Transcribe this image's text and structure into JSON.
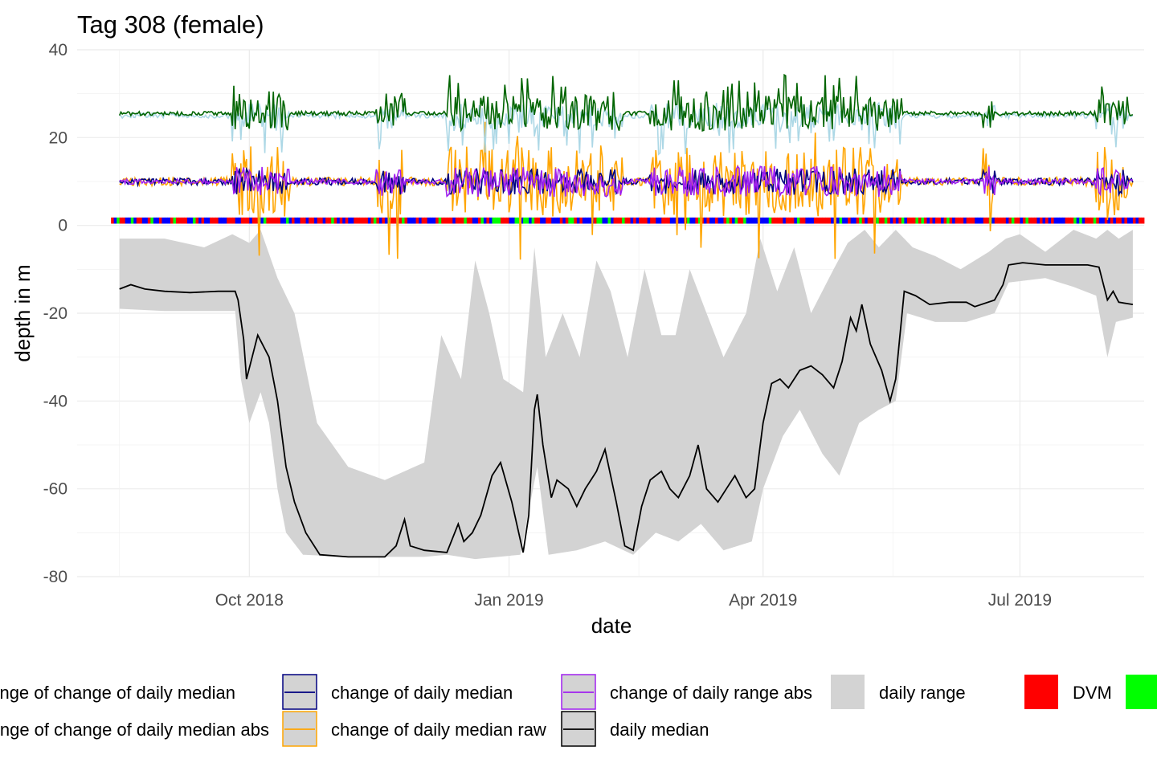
{
  "chart_data": {
    "type": "line",
    "title": "Tag 308 (female)",
    "xlabel": "date",
    "ylabel": "depth in m",
    "xlim": [
      "2018-08-01",
      "2019-08-14"
    ],
    "ylim": [
      -80,
      40
    ],
    "grid": true,
    "legend_position": "bottom",
    "x_ticks": [
      {
        "date": "2018-10-01",
        "label": "Oct 2018"
      },
      {
        "date": "2019-01-01",
        "label": "Jan 2019"
      },
      {
        "date": "2019-04-01",
        "label": "Apr 2019"
      },
      {
        "date": "2019-07-01",
        "label": "Jul 2019"
      }
    ],
    "y_ticks": [
      40,
      20,
      0,
      -20,
      -40,
      -60,
      -80
    ],
    "colors": {
      "daily_median": "#000000",
      "daily_range": "#d3d3d3",
      "change_daily_median": "#000080",
      "change_daily_median_raw": "#ffa500",
      "change_daily_range_abs": "#a020f0",
      "change_change_daily_median": "#add8e6",
      "change_change_daily_median_abs": "#006400",
      "DVM": "#ff0000",
      "second_state": "#00ff00",
      "third_state": "#0000ff"
    },
    "legend": [
      {
        "label": "change of change of daily median",
        "color": "#add8e6",
        "kind": "line"
      },
      {
        "label": "change of change of daily median abs",
        "color": "#006400",
        "kind": "line"
      },
      {
        "label": "change of daily median",
        "color": "#000080",
        "kind": "line"
      },
      {
        "label": "change of daily median raw",
        "color": "#ffa500",
        "kind": "line"
      },
      {
        "label": "change of daily range abs",
        "color": "#a020f0",
        "kind": "line"
      },
      {
        "label": "daily median",
        "color": "#000000",
        "kind": "line"
      },
      {
        "label": "daily range",
        "color": "#d3d3d3",
        "kind": "fill"
      },
      {
        "label": "DVM",
        "color": "#ff0000",
        "kind": "fill"
      },
      {
        "label": "",
        "color": "#00ff00",
        "kind": "fill"
      }
    ],
    "series": [
      {
        "name": "daily median",
        "color": "#000000",
        "points": [
          [
            "2018-08-16",
            -14.5
          ],
          [
            "2018-08-20",
            -13.5
          ],
          [
            "2018-08-25",
            -14.5
          ],
          [
            "2018-09-01",
            -15
          ],
          [
            "2018-09-10",
            -15.3
          ],
          [
            "2018-09-20",
            -15
          ],
          [
            "2018-09-26",
            -15
          ],
          [
            "2018-09-27",
            -17
          ],
          [
            "2018-09-29",
            -26
          ],
          [
            "2018-09-30",
            -35
          ],
          [
            "2018-10-02",
            -30
          ],
          [
            "2018-10-04",
            -25
          ],
          [
            "2018-10-08",
            -30
          ],
          [
            "2018-10-11",
            -40
          ],
          [
            "2018-10-14",
            -55
          ],
          [
            "2018-10-17",
            -63
          ],
          [
            "2018-10-21",
            -70
          ],
          [
            "2018-10-26",
            -75
          ],
          [
            "2018-11-05",
            -75.5
          ],
          [
            "2018-11-18",
            -75.5
          ],
          [
            "2018-11-22",
            -73
          ],
          [
            "2018-11-25",
            -67
          ],
          [
            "2018-11-27",
            -73
          ],
          [
            "2018-12-02",
            -74
          ],
          [
            "2018-12-10",
            -74.5
          ],
          [
            "2018-12-14",
            -68
          ],
          [
            "2018-12-16",
            -72
          ],
          [
            "2018-12-19",
            -70
          ],
          [
            "2018-12-22",
            -66
          ],
          [
            "2018-12-26",
            -57
          ],
          [
            "2018-12-29",
            -54
          ],
          [
            "2019-01-02",
            -63
          ],
          [
            "2019-01-06",
            -74.5
          ],
          [
            "2019-01-08",
            -66
          ],
          [
            "2019-01-10",
            -42
          ],
          [
            "2019-01-11",
            -38.5
          ],
          [
            "2019-01-13",
            -50
          ],
          [
            "2019-01-16",
            -62
          ],
          [
            "2019-01-18",
            -58
          ],
          [
            "2019-01-22",
            -60
          ],
          [
            "2019-01-25",
            -64
          ],
          [
            "2019-01-28",
            -60
          ],
          [
            "2019-02-01",
            -56
          ],
          [
            "2019-02-04",
            -51
          ],
          [
            "2019-02-08",
            -63
          ],
          [
            "2019-02-11",
            -73
          ],
          [
            "2019-02-14",
            -74
          ],
          [
            "2019-02-17",
            -64
          ],
          [
            "2019-02-20",
            -58
          ],
          [
            "2019-02-24",
            -56
          ],
          [
            "2019-02-27",
            -60
          ],
          [
            "2019-03-02",
            -62
          ],
          [
            "2019-03-06",
            -57
          ],
          [
            "2019-03-09",
            -50
          ],
          [
            "2019-03-12",
            -60
          ],
          [
            "2019-03-16",
            -63
          ],
          [
            "2019-03-19",
            -60
          ],
          [
            "2019-03-22",
            -57
          ],
          [
            "2019-03-26",
            -62
          ],
          [
            "2019-03-29",
            -60
          ],
          [
            "2019-04-01",
            -45
          ],
          [
            "2019-04-04",
            -36
          ],
          [
            "2019-04-07",
            -35
          ],
          [
            "2019-04-10",
            -37
          ],
          [
            "2019-04-14",
            -33
          ],
          [
            "2019-04-18",
            -32
          ],
          [
            "2019-04-22",
            -34
          ],
          [
            "2019-04-26",
            -37
          ],
          [
            "2019-04-29",
            -31
          ],
          [
            "2019-05-02",
            -21
          ],
          [
            "2019-05-04",
            -24
          ],
          [
            "2019-05-06",
            -18
          ],
          [
            "2019-05-09",
            -27
          ],
          [
            "2019-05-13",
            -33
          ],
          [
            "2019-05-16",
            -40
          ],
          [
            "2019-05-18",
            -35
          ],
          [
            "2019-05-21",
            -15
          ],
          [
            "2019-05-25",
            -16
          ],
          [
            "2019-05-30",
            -18
          ],
          [
            "2019-06-06",
            -17.5
          ],
          [
            "2019-06-12",
            -17.5
          ],
          [
            "2019-06-15",
            -18.5
          ],
          [
            "2019-06-22",
            -17
          ],
          [
            "2019-06-25",
            -13.5
          ],
          [
            "2019-06-27",
            -9
          ],
          [
            "2019-07-02",
            -8.5
          ],
          [
            "2019-07-10",
            -9
          ],
          [
            "2019-07-25",
            -9
          ],
          [
            "2019-07-29",
            -9.5
          ],
          [
            "2019-08-01",
            -17
          ],
          [
            "2019-08-03",
            -15
          ],
          [
            "2019-08-05",
            -17.5
          ],
          [
            "2019-08-10",
            -18
          ]
        ]
      },
      {
        "name": "daily range",
        "color": "#d3d3d3",
        "upper": [
          [
            "2018-08-16",
            -3
          ],
          [
            "2018-09-01",
            -3
          ],
          [
            "2018-09-15",
            -5
          ],
          [
            "2018-09-25",
            -2
          ],
          [
            "2018-10-01",
            -4
          ],
          [
            "2018-10-05",
            -1
          ],
          [
            "2018-10-11",
            -12
          ],
          [
            "2018-10-17",
            -20
          ],
          [
            "2018-10-25",
            -45
          ],
          [
            "2018-11-05",
            -55
          ],
          [
            "2018-11-18",
            -58
          ],
          [
            "2018-12-02",
            -54
          ],
          [
            "2018-12-08",
            -25
          ],
          [
            "2018-12-15",
            -35
          ],
          [
            "2018-12-20",
            -8
          ],
          [
            "2018-12-25",
            -20
          ],
          [
            "2018-12-30",
            -35
          ],
          [
            "2019-01-06",
            -38
          ],
          [
            "2019-01-10",
            -5
          ],
          [
            "2019-01-14",
            -30
          ],
          [
            "2019-01-20",
            -20
          ],
          [
            "2019-01-26",
            -30
          ],
          [
            "2019-02-01",
            -8
          ],
          [
            "2019-02-06",
            -15
          ],
          [
            "2019-02-12",
            -30
          ],
          [
            "2019-02-18",
            -10
          ],
          [
            "2019-02-24",
            -25
          ],
          [
            "2019-03-01",
            -25
          ],
          [
            "2019-03-06",
            -10
          ],
          [
            "2019-03-12",
            -20
          ],
          [
            "2019-03-18",
            -30
          ],
          [
            "2019-03-26",
            -20
          ],
          [
            "2019-03-31",
            -3
          ],
          [
            "2019-04-06",
            -15
          ],
          [
            "2019-04-12",
            -5
          ],
          [
            "2019-04-18",
            -20
          ],
          [
            "2019-04-26",
            -10
          ],
          [
            "2019-05-01",
            -4
          ],
          [
            "2019-05-07",
            -1
          ],
          [
            "2019-05-12",
            -5
          ],
          [
            "2019-05-18",
            -1
          ],
          [
            "2019-05-24",
            -5
          ],
          [
            "2019-06-01",
            -7
          ],
          [
            "2019-06-10",
            -10
          ],
          [
            "2019-06-20",
            -6
          ],
          [
            "2019-06-26",
            -3
          ],
          [
            "2019-07-01",
            -2
          ],
          [
            "2019-07-10",
            -6
          ],
          [
            "2019-07-20",
            -1
          ],
          [
            "2019-07-28",
            -3
          ],
          [
            "2019-08-01",
            -1
          ],
          [
            "2019-08-05",
            -3
          ],
          [
            "2019-08-10",
            -1
          ]
        ],
        "lower": [
          [
            "2018-08-16",
            -19
          ],
          [
            "2018-09-01",
            -19.5
          ],
          [
            "2018-09-26",
            -19.5
          ],
          [
            "2018-09-28",
            -35
          ],
          [
            "2018-10-01",
            -45
          ],
          [
            "2018-10-05",
            -38
          ],
          [
            "2018-10-08",
            -45
          ],
          [
            "2018-10-11",
            -60
          ],
          [
            "2018-10-14",
            -70
          ],
          [
            "2018-10-20",
            -75
          ],
          [
            "2018-11-05",
            -75.5
          ],
          [
            "2018-12-02",
            -75.5
          ],
          [
            "2018-12-10",
            -75
          ],
          [
            "2018-12-20",
            -76
          ],
          [
            "2019-01-05",
            -75
          ],
          [
            "2019-01-11",
            -55
          ],
          [
            "2019-01-15",
            -75
          ],
          [
            "2019-01-25",
            -74
          ],
          [
            "2019-02-04",
            -72
          ],
          [
            "2019-02-14",
            -75
          ],
          [
            "2019-02-22",
            -70
          ],
          [
            "2019-03-02",
            -72
          ],
          [
            "2019-03-10",
            -68
          ],
          [
            "2019-03-18",
            -74
          ],
          [
            "2019-03-28",
            -72
          ],
          [
            "2019-04-01",
            -60
          ],
          [
            "2019-04-08",
            -48
          ],
          [
            "2019-04-14",
            -42
          ],
          [
            "2019-04-22",
            -52
          ],
          [
            "2019-04-28",
            -57
          ],
          [
            "2019-05-05",
            -45
          ],
          [
            "2019-05-12",
            -42
          ],
          [
            "2019-05-18",
            -40
          ],
          [
            "2019-05-22",
            -20
          ],
          [
            "2019-06-01",
            -22
          ],
          [
            "2019-06-12",
            -22
          ],
          [
            "2019-06-22",
            -20
          ],
          [
            "2019-06-27",
            -13
          ],
          [
            "2019-07-10",
            -12
          ],
          [
            "2019-07-20",
            -14
          ],
          [
            "2019-07-28",
            -16
          ],
          [
            "2019-08-01",
            -30
          ],
          [
            "2019-08-04",
            -22
          ],
          [
            "2019-08-10",
            -21
          ]
        ]
      }
    ],
    "noisy_series": [
      {
        "name": "change of daily median raw",
        "color": "#ffa500",
        "base": 10,
        "quiet_amplitude": 1,
        "active_amplitude": 8,
        "spike_min": -8,
        "spike_max": 24
      },
      {
        "name": "change of daily median",
        "color": "#000080",
        "base": 10,
        "quiet_amplitude": 0.8,
        "active_amplitude": 3
      },
      {
        "name": "change of daily range abs",
        "color": "#a020f0",
        "base": 10,
        "quiet_amplitude": 0.6,
        "active_amplitude": 3.5
      },
      {
        "name": "change of change of daily median",
        "color": "#add8e6",
        "base": 25,
        "quiet_amplitude": 0.6,
        "active_amplitude": 3,
        "dips": true
      },
      {
        "name": "change of change of daily median abs",
        "color": "#006400",
        "base": 25.5,
        "quiet_amplitude": 0.5,
        "active_amplitude": 4,
        "peaks": true
      }
    ],
    "active_periods": [
      [
        "2018-09-25",
        "2018-10-15"
      ],
      [
        "2018-11-15",
        "2018-11-25"
      ],
      [
        "2018-12-10",
        "2019-02-10"
      ],
      [
        "2019-02-20",
        "2019-05-20"
      ],
      [
        "2019-06-18",
        "2019-06-22"
      ],
      [
        "2019-07-28",
        "2019-08-08"
      ]
    ],
    "state_strip": {
      "y": 1,
      "from": "2018-08-16",
      "to": "2019-08-14",
      "states": [
        "DVM",
        "green",
        "blue"
      ]
    }
  }
}
